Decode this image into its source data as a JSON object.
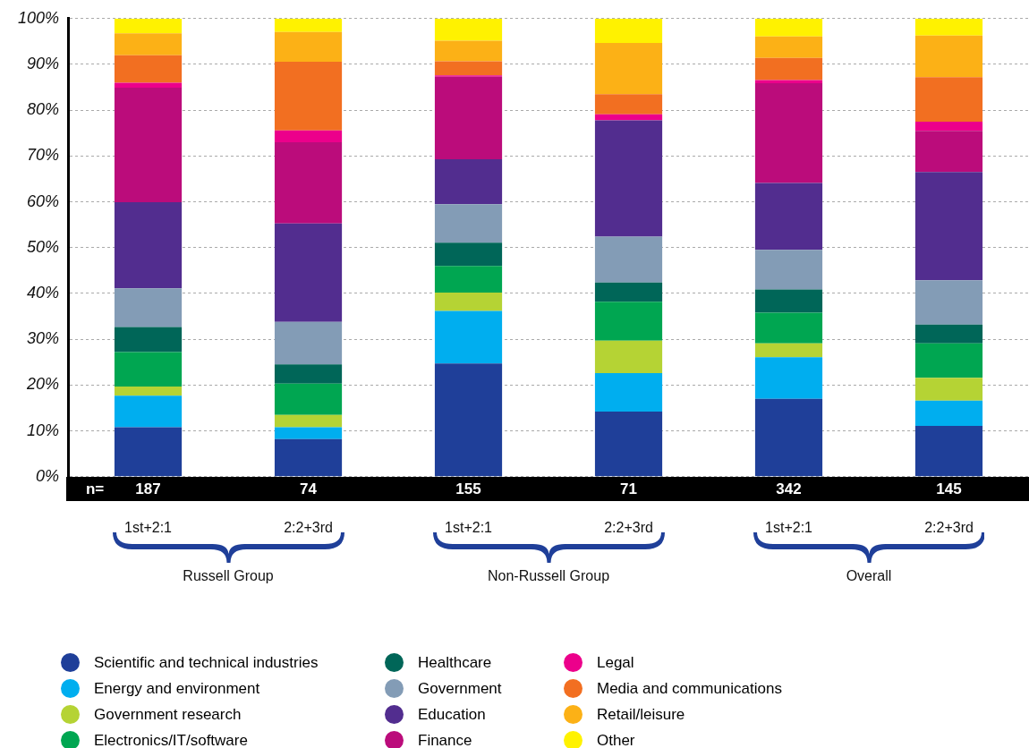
{
  "chart_data": {
    "type": "bar",
    "stacked": true,
    "categories": [
      "1st+2:1",
      "2:2+3rd",
      "1st+2:1",
      "2:2+3rd",
      "1st+2:1",
      "2:2+3rd"
    ],
    "series": [
      {
        "name": "Scientific and technical industries",
        "color": "#1f3f99",
        "values": [
          10.8,
          8.2,
          24.7,
          14.2,
          17.0,
          11.1
        ]
      },
      {
        "name": "Energy and environment",
        "color": "#00aeef",
        "values": [
          6.9,
          2.6,
          11.5,
          8.4,
          9.1,
          5.5
        ]
      },
      {
        "name": "Government research",
        "color": "#b5d334",
        "values": [
          2.0,
          2.7,
          4.0,
          7.1,
          3.0,
          5.0
        ]
      },
      {
        "name": "Electronics/IT/software",
        "color": "#00a651",
        "values": [
          7.5,
          6.8,
          5.8,
          8.5,
          6.7,
          7.5
        ]
      },
      {
        "name": "Healthcare",
        "color": "#006658",
        "values": [
          5.5,
          4.2,
          5.1,
          4.2,
          5.1,
          4.1
        ]
      },
      {
        "name": "Government",
        "color": "#839cb6",
        "values": [
          8.4,
          9.3,
          8.4,
          10.0,
          8.6,
          9.7
        ]
      },
      {
        "name": "Education",
        "color": "#522d8f",
        "values": [
          18.8,
          21.5,
          9.8,
          25.4,
          14.6,
          23.6
        ]
      },
      {
        "name": "Finance",
        "color": "#bb0c7b",
        "values": [
          25.0,
          17.7,
          18.0,
          0,
          21.8,
          9.0
        ]
      },
      {
        "name": "Legal",
        "color": "#ec008b",
        "values": [
          1.1,
          2.6,
          0.3,
          1.3,
          0.7,
          2.0
        ]
      },
      {
        "name": "Media and communications",
        "color": "#f26f21",
        "values": [
          6.0,
          15.0,
          3.1,
          4.4,
          4.8,
          9.7
        ]
      },
      {
        "name": "Retail/leisure",
        "color": "#fcb116",
        "values": [
          4.8,
          6.5,
          4.5,
          11.2,
          4.7,
          9.1
        ]
      },
      {
        "name": "Other",
        "color": "#fff200",
        "values": [
          3.2,
          2.9,
          4.8,
          5.3,
          3.9,
          3.7
        ]
      }
    ],
    "ylim": [
      0,
      100
    ],
    "yticks": [
      {
        "value": 0,
        "label": "0%"
      },
      {
        "value": 10,
        "label": "10%"
      },
      {
        "value": 20,
        "label": "20%"
      },
      {
        "value": 30,
        "label": "30%"
      },
      {
        "value": 40,
        "label": "40%"
      },
      {
        "value": 50,
        "label": "50%"
      },
      {
        "value": 60,
        "label": "60%"
      },
      {
        "value": 70,
        "label": "70%"
      },
      {
        "value": 80,
        "label": "80%"
      },
      {
        "value": 90,
        "label": "90%"
      },
      {
        "value": 100,
        "label": "100%"
      }
    ],
    "grid": "y",
    "legend": "bottom",
    "annotations": [
      "n=",
      "187",
      "74",
      "155",
      "71",
      "342",
      "145",
      "Russell Group",
      "Non-Russell Group",
      "Overall"
    ]
  }
}
